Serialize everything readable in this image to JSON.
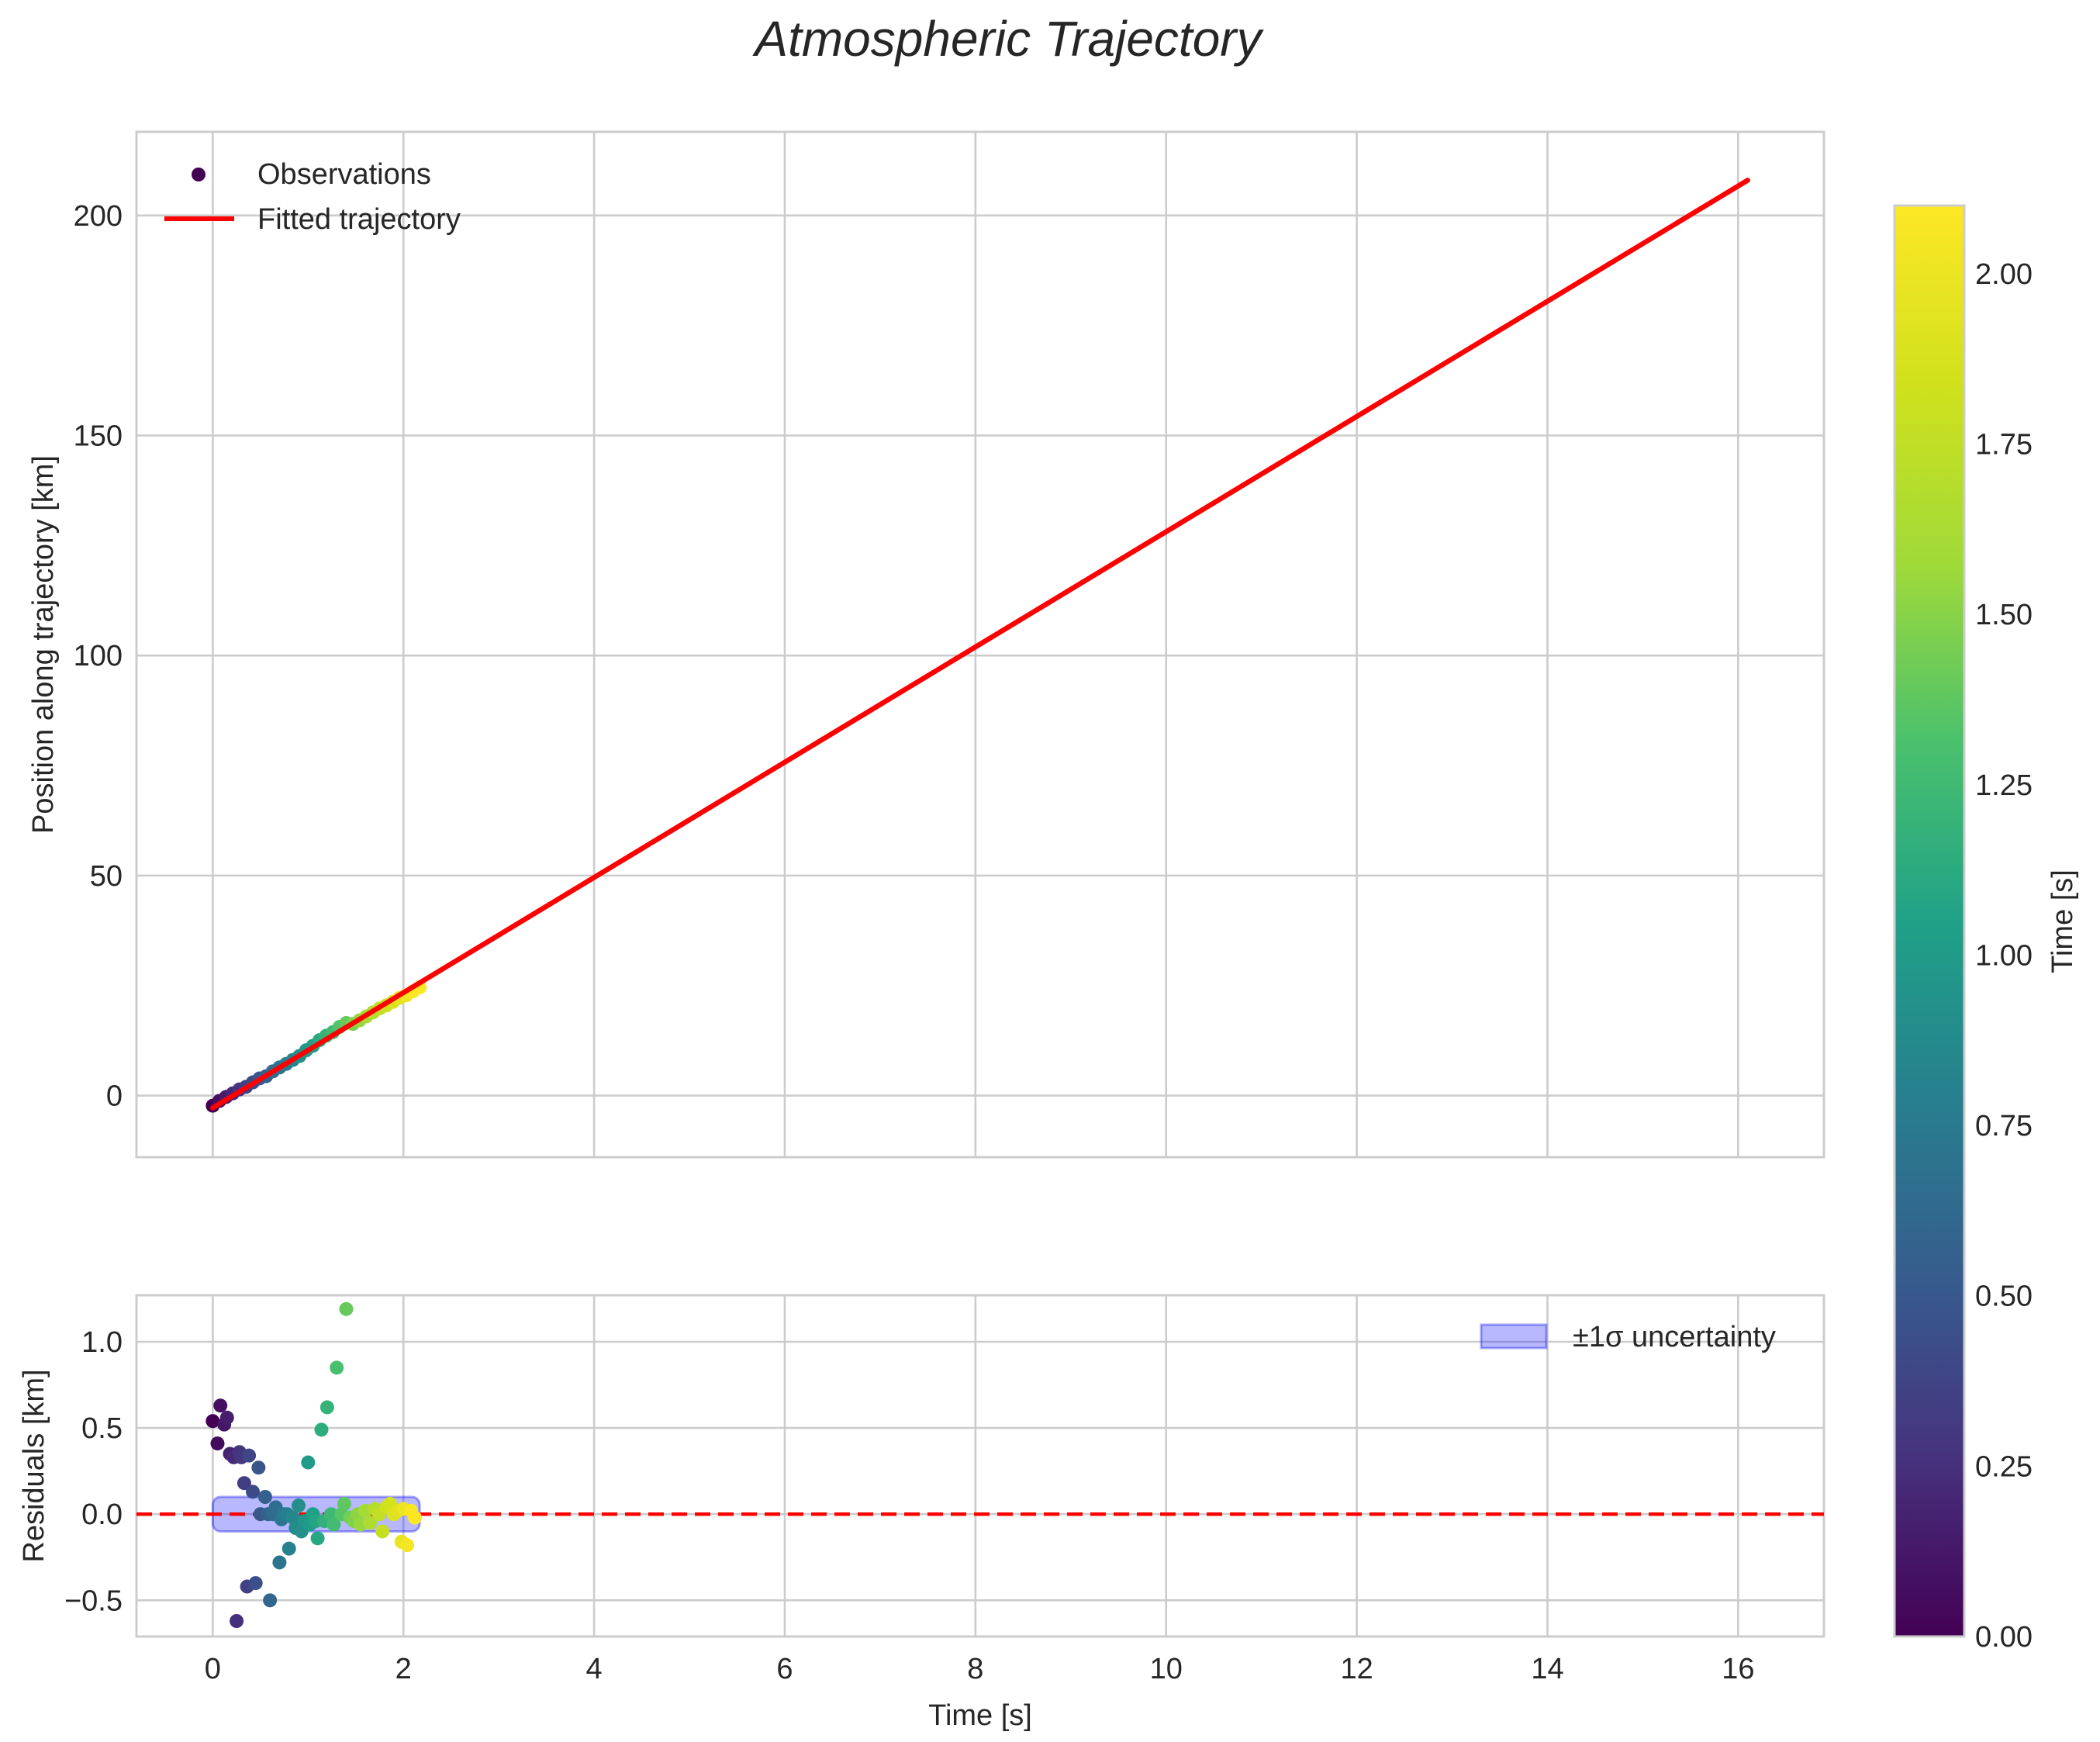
{
  "title": "Atmospheric Trajectory",
  "colors": {
    "fit_line": "#ff0000",
    "band_fill": "#0000ff",
    "grid": "#cccccc",
    "frame": "#cccccc"
  },
  "legend_top": {
    "observations": "Observations",
    "fitted": "Fitted trajectory"
  },
  "legend_bottom": {
    "band": "±1σ uncertainty"
  },
  "colorbar": {
    "label": "Time [s]",
    "cmap": "viridis",
    "range": [
      0.0,
      2.1
    ],
    "ticks": [
      "0.00",
      "0.25",
      "0.50",
      "0.75",
      "1.00",
      "1.25",
      "1.50",
      "1.75",
      "2.00"
    ]
  },
  "chart_data": [
    {
      "type": "scatter",
      "title": "Atmospheric Trajectory",
      "xlabel": "",
      "ylabel": "Position along trajectory [km]",
      "xlim": [
        -0.8,
        16.9
      ],
      "ylim": [
        -14,
        219
      ],
      "xticks": [
        0,
        2,
        4,
        6,
        8,
        10,
        12,
        14,
        16
      ],
      "yticks": [
        0,
        50,
        100,
        150,
        200
      ],
      "ytick_labels": [
        "0",
        "50",
        "100",
        "150",
        "200"
      ],
      "fit": {
        "name": "Fitted trajectory",
        "x": [
          0,
          16.1
        ],
        "y": [
          -2.8,
          208
        ]
      },
      "observations": {
        "name": "Observations",
        "t": [
          0.0,
          0.07,
          0.14,
          0.21,
          0.28,
          0.35,
          0.42,
          0.49,
          0.56,
          0.63,
          0.7,
          0.77,
          0.84,
          0.91,
          0.98,
          1.05,
          1.12,
          1.19,
          1.26,
          1.33,
          1.4,
          1.47,
          1.54,
          1.61,
          1.68,
          1.75,
          1.82,
          1.89,
          1.96,
          2.03,
          2.1,
          2.17
        ],
        "y": [
          -2.3,
          -1.2,
          -0.3,
          0.5,
          1.4,
          2.0,
          3.0,
          3.9,
          4.4,
          5.5,
          6.4,
          7.2,
          8.1,
          9.0,
          10.3,
          11.3,
          12.6,
          13.6,
          14.4,
          15.6,
          16.5,
          16.3,
          17.1,
          18.0,
          18.9,
          19.8,
          20.5,
          21.3,
          22.2,
          22.8,
          23.7,
          24.6
        ]
      }
    },
    {
      "type": "scatter",
      "xlabel": "Time [s]",
      "ylabel": "Residuals [km]",
      "xlim": [
        -0.8,
        16.9
      ],
      "ylim": [
        -0.71,
        1.27
      ],
      "xticks": [
        0,
        2,
        4,
        6,
        8,
        10,
        12,
        14,
        16
      ],
      "xtick_labels": [
        "0",
        "2",
        "4",
        "6",
        "8",
        "10",
        "12",
        "14",
        "16"
      ],
      "yticks": [
        -0.5,
        0.0,
        0.5,
        1.0
      ],
      "ytick_labels": [
        "−0.5",
        "0.0",
        "0.5",
        "1.0"
      ],
      "zero_line": 0,
      "band": {
        "name": "±1σ uncertainty",
        "x": [
          0,
          2.17
        ],
        "lower": -0.1,
        "upper": 0.1
      },
      "residuals": {
        "t": [
          0.0,
          0.05,
          0.08,
          0.12,
          0.15,
          0.18,
          0.22,
          0.25,
          0.28,
          0.3,
          0.33,
          0.36,
          0.38,
          0.42,
          0.45,
          0.48,
          0.5,
          0.55,
          0.58,
          0.6,
          0.63,
          0.66,
          0.7,
          0.72,
          0.75,
          0.78,
          0.8,
          0.84,
          0.87,
          0.9,
          0.93,
          0.96,
          1.0,
          1.02,
          1.05,
          1.08,
          1.1,
          1.14,
          1.17,
          1.2,
          1.24,
          1.27,
          1.3,
          1.35,
          1.38,
          1.4,
          1.44,
          1.48,
          1.52,
          1.55,
          1.6,
          1.65,
          1.7,
          1.75,
          1.78,
          1.82,
          1.86,
          1.9,
          1.94,
          1.98,
          2.0,
          2.04,
          2.08,
          2.12
        ],
        "r": [
          0.54,
          0.41,
          0.63,
          0.52,
          0.56,
          0.35,
          0.33,
          -0.62,
          0.36,
          0.33,
          0.18,
          -0.42,
          0.34,
          0.13,
          -0.4,
          0.27,
          0.0,
          0.1,
          0.0,
          -0.5,
          0.0,
          0.04,
          -0.28,
          -0.03,
          0.0,
          0.0,
          -0.2,
          -0.02,
          -0.08,
          0.05,
          -0.1,
          -0.04,
          0.3,
          -0.06,
          0.0,
          -0.04,
          -0.14,
          0.49,
          -0.04,
          0.62,
          0.0,
          -0.06,
          0.85,
          0.0,
          0.06,
          1.19,
          -0.02,
          -0.04,
          0.0,
          -0.06,
          0.02,
          -0.05,
          0.03,
          0.0,
          -0.1,
          0.04,
          0.06,
          0.0,
          0.02,
          -0.16,
          0.03,
          -0.18,
          0.02,
          -0.02
        ]
      }
    }
  ]
}
